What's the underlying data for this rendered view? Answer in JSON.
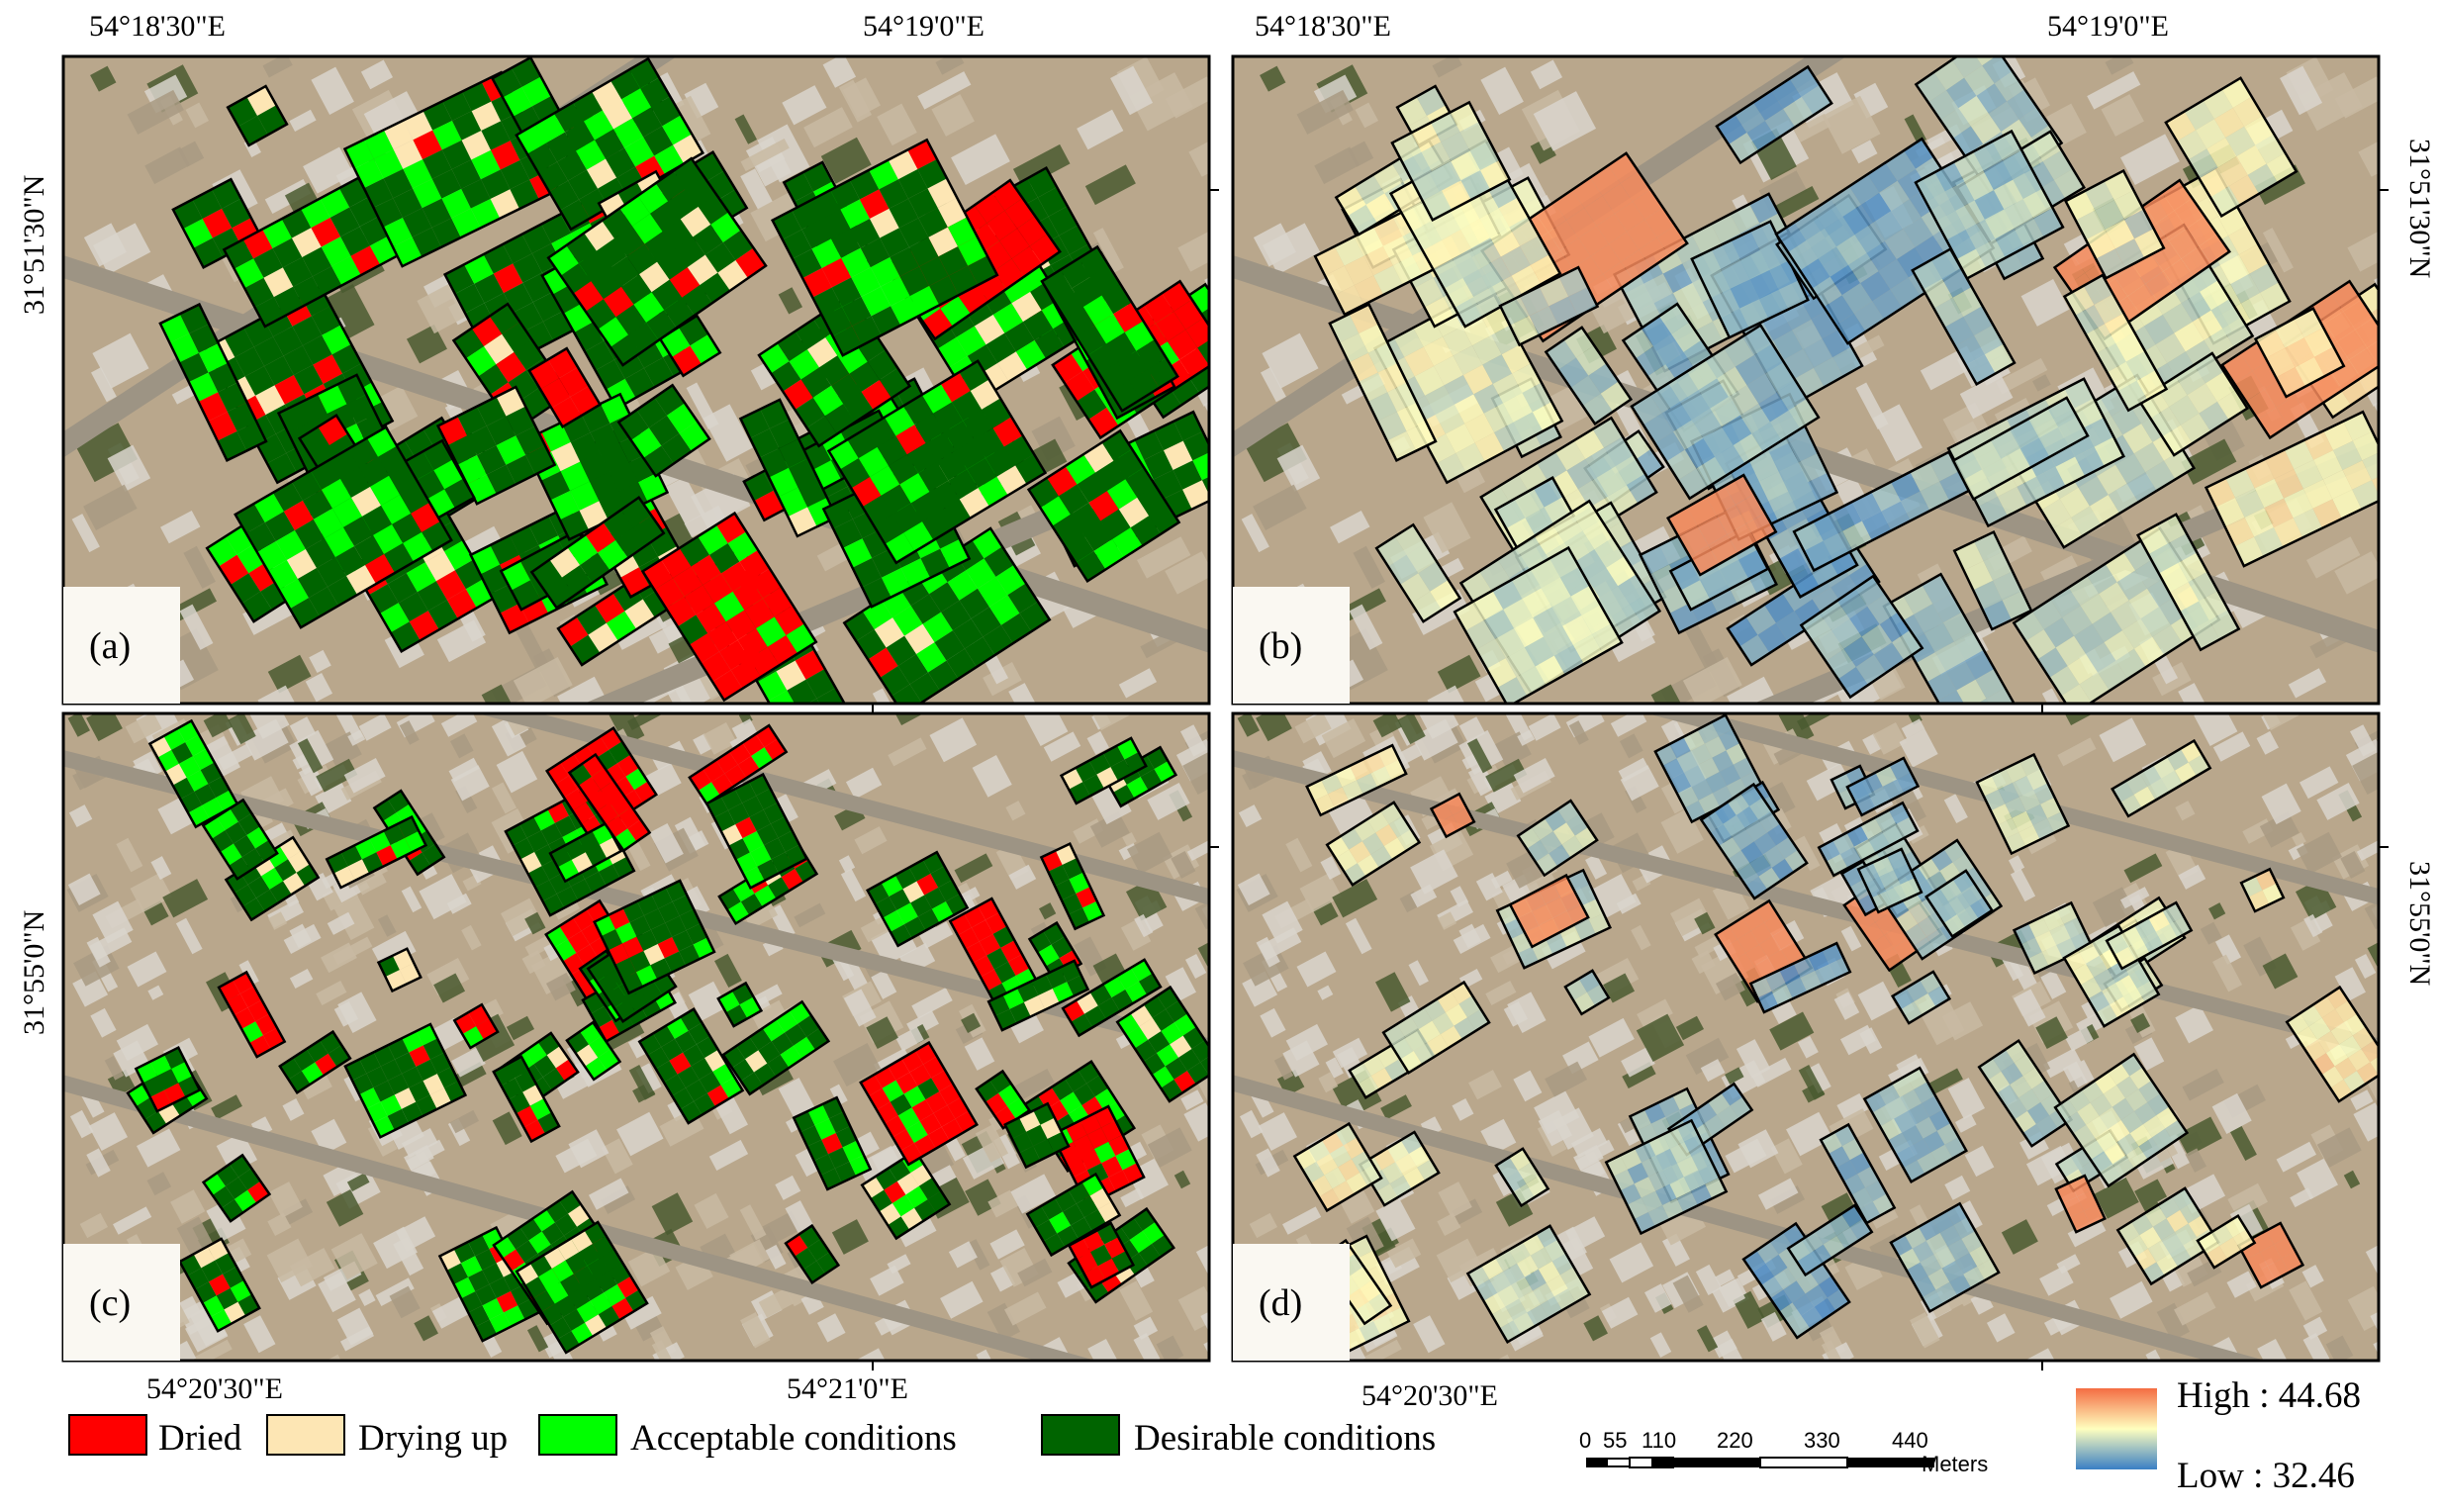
{
  "panels": [
    {
      "label": "(a)",
      "top_coords": [
        "54°18'30\"E",
        "54°19'0\"E"
      ],
      "side_coord": "31°51'30\"N",
      "side": "left",
      "mode": "class"
    },
    {
      "label": "(b)",
      "top_coords": [
        "54°18'30\"E",
        "54°19'0\"E"
      ],
      "side_coord": "31°51'30\"N",
      "side": "right",
      "mode": "continuous"
    },
    {
      "label": "(c)",
      "bottom_coords": [
        "54°20'30\"E",
        "54°21'0\"E"
      ],
      "side_coord": "31°55'0\"N",
      "side": "left",
      "mode": "class"
    },
    {
      "label": "(d)",
      "bottom_coords": [
        "54°20'30\"E"
      ],
      "side_coord": "31°55'0\"N",
      "side": "right",
      "mode": "continuous"
    }
  ],
  "legend": {
    "classes": [
      {
        "label": "Dried",
        "color": "#ff0000"
      },
      {
        "label": "Drying up",
        "color": "#fde6b4"
      },
      {
        "label": "Acceptable conditions",
        "color": "#00ff00"
      },
      {
        "label": "Desirable conditions",
        "color": "#006400"
      }
    ],
    "gradient": {
      "high_label": "High : 44.68",
      "low_label": "Low : 32.46",
      "high_color": "#f46d43",
      "mid_color": "#ffffbf",
      "low_color": "#3a7fc4"
    }
  },
  "scale_bar": {
    "ticks": [
      "0",
      "55",
      "110",
      "220",
      "330",
      "440"
    ],
    "unit": "Meters"
  },
  "colors": {
    "ground": "#b9a78c",
    "road": "#9d9484",
    "building": "#d9d5cc",
    "vegetation": "#4a5a30",
    "panel_border": "#000000"
  }
}
